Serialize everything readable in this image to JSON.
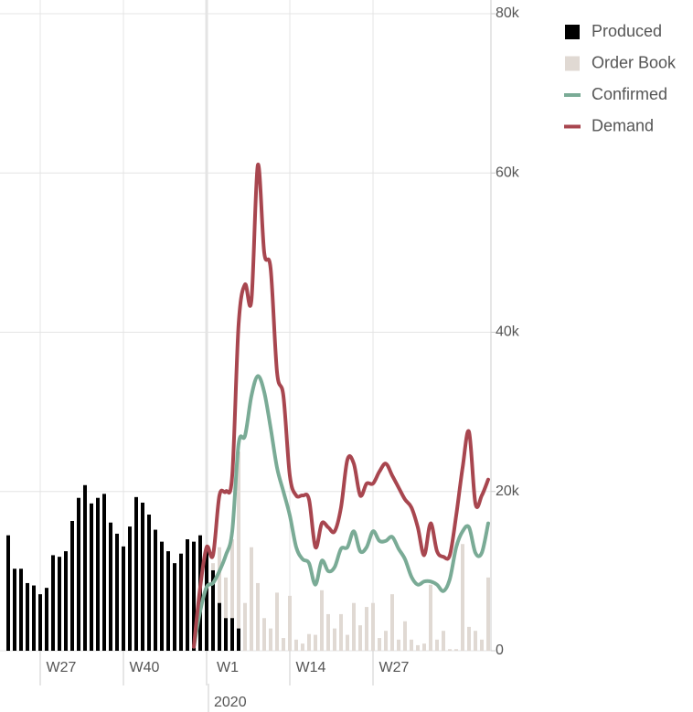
{
  "chart_data": {
    "type": "combo",
    "categories": [
      null,
      null,
      null,
      null,
      null,
      "W27",
      null,
      null,
      null,
      null,
      null,
      null,
      null,
      null,
      null,
      null,
      null,
      null,
      "W40",
      null,
      null,
      null,
      null,
      null,
      null,
      null,
      null,
      null,
      null,
      null,
      null,
      "W1",
      null,
      null,
      null,
      null,
      null,
      null,
      null,
      null,
      null,
      null,
      null,
      null,
      "W14",
      null,
      null,
      null,
      null,
      null,
      null,
      null,
      null,
      null,
      null,
      null,
      null,
      "W27",
      null,
      null,
      null,
      null,
      null,
      null,
      null,
      null,
      null,
      null,
      null,
      null,
      null,
      null,
      null,
      null,
      null,
      null
    ],
    "year_label": "2020",
    "ylim": [
      0,
      80000
    ],
    "yticks": [
      0,
      {
        "value": 20000,
        "label": "20k"
      },
      {
        "value": 40000,
        "label": "40k"
      },
      {
        "value": 60000,
        "label": "60k"
      },
      {
        "value": 80000,
        "label": "80k"
      }
    ],
    "grid": true,
    "legend": "top-right",
    "series": [
      {
        "name": "Produced",
        "type": "bar",
        "color": "#000000",
        "values": [
          14500,
          10300,
          10300,
          8500,
          8200,
          7100,
          7900,
          12000,
          11800,
          12500,
          16300,
          19200,
          20800,
          18500,
          19200,
          19700,
          16100,
          14700,
          13100,
          15600,
          19300,
          18600,
          17100,
          15200,
          13700,
          12500,
          11000,
          12200,
          14000,
          13700,
          14500,
          13100,
          10100,
          6000,
          4100,
          4100,
          2800,
          null,
          null,
          null,
          null,
          null,
          null,
          null,
          null,
          null,
          null,
          null,
          null,
          null,
          null,
          null,
          null,
          null,
          null,
          null,
          null,
          null,
          null,
          null,
          null,
          null,
          null,
          null,
          null,
          null,
          null,
          null,
          null,
          null,
          null,
          null,
          null,
          null,
          null,
          null
        ]
      },
      {
        "name": "Order Book",
        "type": "bar",
        "color": "#e0d9d3",
        "values": [
          null,
          null,
          null,
          null,
          null,
          null,
          null,
          null,
          null,
          null,
          null,
          null,
          null,
          null,
          null,
          null,
          null,
          null,
          null,
          null,
          null,
          null,
          null,
          null,
          null,
          null,
          null,
          null,
          null,
          null,
          null,
          null,
          11000,
          13000,
          9200,
          14000,
          25000,
          6000,
          13000,
          8500,
          4100,
          2800,
          7300,
          1600,
          6900,
          1400,
          900,
          2100,
          2000,
          7600,
          4600,
          2800,
          4600,
          2000,
          6000,
          3200,
          5500,
          6000,
          1600,
          2500,
          7100,
          1400,
          3700,
          1400,
          700,
          900,
          8300,
          1400,
          2500,
          200,
          200,
          13400,
          3000,
          2500,
          1400,
          9200
        ]
      },
      {
        "name": "Confirmed",
        "type": "line",
        "color": "#7aab96",
        "values": [
          null,
          null,
          null,
          null,
          null,
          null,
          null,
          null,
          null,
          null,
          null,
          null,
          null,
          null,
          null,
          null,
          null,
          null,
          null,
          null,
          null,
          null,
          null,
          null,
          null,
          null,
          null,
          null,
          null,
          500,
          5000,
          8000,
          8500,
          10000,
          12000,
          15000,
          26000,
          27000,
          32000,
          34500,
          32500,
          28000,
          23000,
          20000,
          17000,
          13000,
          11500,
          11000,
          8300,
          11300,
          10000,
          10500,
          12800,
          13000,
          15000,
          12500,
          13000,
          15000,
          13800,
          13800,
          14300,
          12800,
          11500,
          9300,
          8300,
          8700,
          8700,
          8300,
          7500,
          9000,
          13000,
          15000,
          15500,
          12300,
          12300,
          16000
        ]
      },
      {
        "name": "Demand",
        "type": "line",
        "color": "#a8464f",
        "values": [
          null,
          null,
          null,
          null,
          null,
          null,
          null,
          null,
          null,
          null,
          null,
          null,
          null,
          null,
          null,
          null,
          null,
          null,
          null,
          null,
          null,
          null,
          null,
          null,
          null,
          null,
          null,
          null,
          null,
          500,
          8000,
          13000,
          12000,
          19500,
          20000,
          22000,
          41000,
          46000,
          44000,
          61000,
          50000,
          48000,
          35000,
          32000,
          22000,
          19500,
          19500,
          19000,
          13000,
          16000,
          15500,
          15000,
          18000,
          24000,
          23500,
          19500,
          21000,
          21000,
          22500,
          23500,
          22000,
          20500,
          19000,
          18000,
          15500,
          12000,
          16000,
          12500,
          11800,
          12000,
          17000,
          23000,
          27500,
          18500,
          19500,
          21500
        ]
      }
    ]
  }
}
